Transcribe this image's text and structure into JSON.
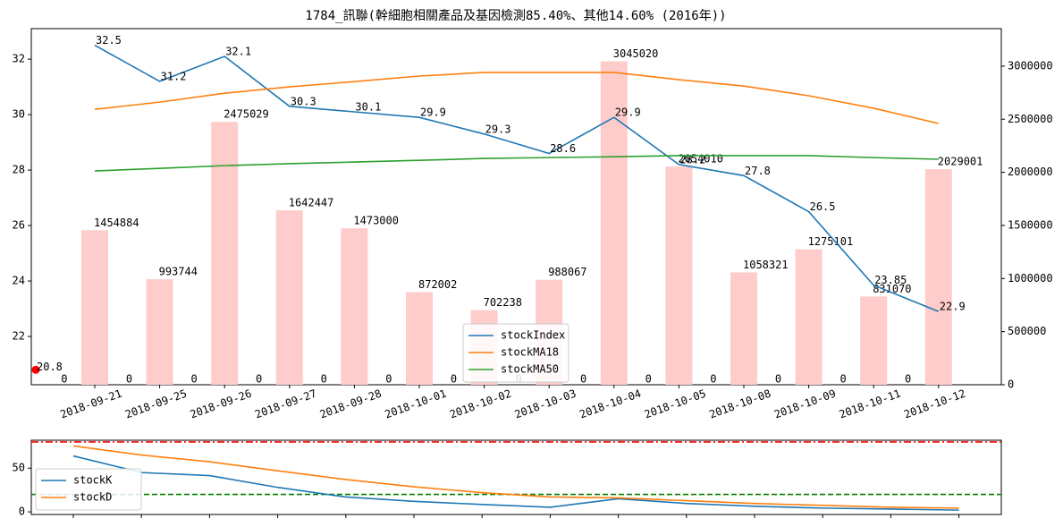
{
  "chart_data": [
    {
      "type": "combo",
      "title": "1784_訊聯(幹細胞相關產品及基因檢測85.40%、其他14.60% (2016年))",
      "categories": [
        "2018-09-21",
        "2018-09-25",
        "2018-09-26",
        "2018-09-27",
        "2018-09-28",
        "2018-10-01",
        "2018-10-02",
        "2018-10-03",
        "2018-10-04",
        "2018-10-05",
        "2018-10-08",
        "2018-10-09",
        "2018-10-11",
        "2018-10-12"
      ],
      "series": [
        {
          "name": "stockIndex",
          "color": "#1f77b4",
          "values": [
            32.5,
            31.2,
            32.1,
            30.3,
            30.1,
            29.9,
            29.3,
            28.6,
            29.9,
            28.2,
            27.8,
            26.5,
            23.85,
            22.9
          ],
          "show_labels": true
        },
        {
          "name": "stockMA18",
          "color": "#ff7f0e",
          "values": [
            30.19,
            30.45,
            30.77,
            31.0,
            31.19,
            31.39,
            31.52,
            31.52,
            31.52,
            31.26,
            31.03,
            30.68,
            30.23,
            29.68
          ]
        },
        {
          "name": "stockMA50",
          "color": "#2ca02c",
          "values": [
            27.97,
            28.06,
            28.16,
            28.23,
            28.29,
            28.35,
            28.42,
            28.45,
            28.48,
            28.52,
            28.52,
            28.52,
            28.45,
            28.39
          ]
        }
      ],
      "bars": {
        "axis": "y2",
        "color": "#ffcccc",
        "values": [
          1454884,
          993744,
          2475029,
          1642447,
          1473000,
          872002,
          702238,
          988067,
          3045020,
          2054010,
          1058321,
          1275101,
          831070,
          2029001
        ]
      },
      "zero_bars": {
        "axis": "y2",
        "values": [
          0,
          0,
          0,
          0,
          0,
          0,
          0,
          0,
          0,
          0,
          0,
          0,
          0,
          0
        ]
      },
      "marker": {
        "value": 20.8,
        "color": "red"
      },
      "ylim": [
        20.26,
        33.1
      ],
      "yticks": [
        22,
        24,
        26,
        28,
        30,
        32
      ],
      "y2lim": [
        0,
        3353000
      ],
      "y2ticks": [
        0,
        500000,
        1000000,
        1500000,
        2000000,
        2500000,
        3000000
      ],
      "legend": "lower center"
    },
    {
      "type": "line",
      "series": [
        {
          "name": "stockK",
          "color": "#1f77b4",
          "values": [
            64,
            45,
            41.5,
            28,
            17,
            12,
            8.5,
            5.3,
            15,
            9.6,
            6.4,
            4.3,
            3.2,
            2
          ]
        },
        {
          "name": "stockD",
          "color": "#ff7f0e",
          "values": [
            75.5,
            65,
            57.4,
            47,
            37,
            28.7,
            22,
            17,
            16,
            12.8,
            9.6,
            7.4,
            5.3,
            4.3
          ]
        }
      ],
      "hlines": [
        {
          "value": 80,
          "color": "red",
          "style": "dashdot"
        },
        {
          "value": 20,
          "color": "green",
          "style": "dashed"
        }
      ],
      "ylim": [
        -3,
        82
      ],
      "yticks": [
        0,
        50
      ],
      "legend": "center left"
    }
  ]
}
